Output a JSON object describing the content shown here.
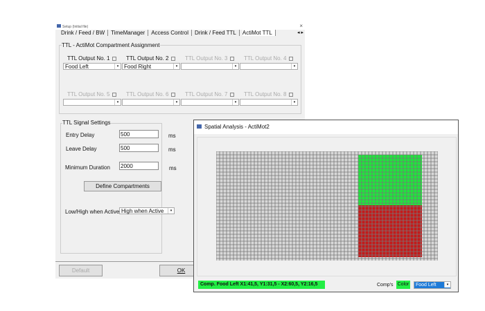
{
  "setup": {
    "title": "Setup (Initial file)",
    "tabs": [
      "Drink / Feed / BW",
      "TimeManager",
      "Access Control",
      "Drink / Feed TTL",
      "ActiMot TTL"
    ],
    "assignment_title": "TTL - ActiMot Compartment  Assignment",
    "outputs": [
      {
        "label": "TTL Output No. 1",
        "checked": true,
        "value": "Food Left"
      },
      {
        "label": "TTL Output No. 2",
        "checked": true,
        "value": "Food Right"
      },
      {
        "label": "TTL Output No. 3",
        "checked": false,
        "value": ""
      },
      {
        "label": "TTL Output No. 4",
        "checked": false,
        "value": ""
      },
      {
        "label": "TTL Output No. 5",
        "checked": false,
        "value": ""
      },
      {
        "label": "TTL Output No. 6",
        "checked": false,
        "value": ""
      },
      {
        "label": "TTL Output No. 7",
        "checked": false,
        "value": ""
      },
      {
        "label": "TTL Output No. 8",
        "checked": false,
        "value": ""
      }
    ],
    "signal_title": "TTL Signal Settings",
    "entry_delay_label": "Entry Delay",
    "entry_delay": "500",
    "leave_delay_label": "Leave Delay",
    "leave_delay": "500",
    "min_duration_label": "Minimum Duration",
    "min_duration": "2000",
    "unit": "ms",
    "define_button": "Define Compartments",
    "lowhigh_label": "Low/High when Active",
    "lowhigh_value": "High when Active",
    "default_button": "Default",
    "ok_button": "OK"
  },
  "spatial": {
    "title": "Spatial Analysis - ActiMot2",
    "status": "Comp. Food Left X1:41,5, Y1:31,5 - X2:60,5, Y2:16,5",
    "comps_label": "Comp's",
    "color_button": "Color",
    "comp_select": "Food Left",
    "colors": {
      "green": "#1ee63c",
      "red": "#c41a1a",
      "grid": "#777777",
      "status_bg": "#22ee44"
    }
  }
}
